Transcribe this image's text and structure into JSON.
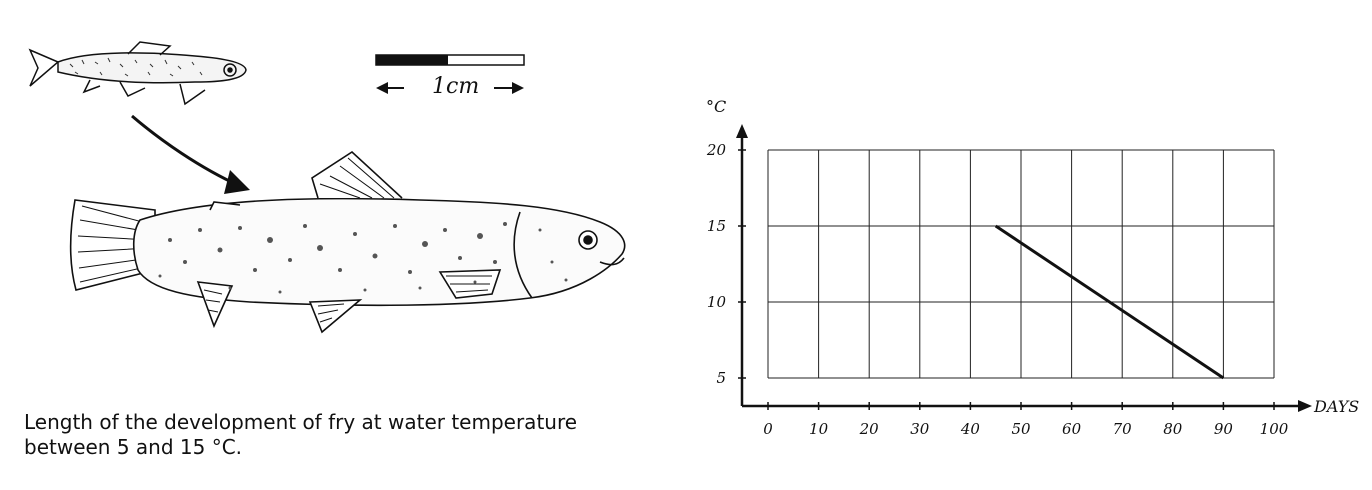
{
  "illustration": {
    "scale_label": "1cm"
  },
  "caption": {
    "line1": "Length of the development of fry at water temperature",
    "line2": "between 5 and 15 °C."
  },
  "chart_data": {
    "type": "line",
    "title": "",
    "xlabel": "DAYS",
    "ylabel": "°C",
    "xlim": [
      0,
      100
    ],
    "ylim": [
      5,
      20
    ],
    "x_ticks": [
      0,
      10,
      20,
      30,
      40,
      50,
      60,
      70,
      80,
      90,
      100
    ],
    "y_ticks": [
      5,
      10,
      15,
      20
    ],
    "grid": true,
    "series": [
      {
        "x": [
          45,
          90
        ],
        "y": [
          15,
          5
        ]
      }
    ]
  }
}
